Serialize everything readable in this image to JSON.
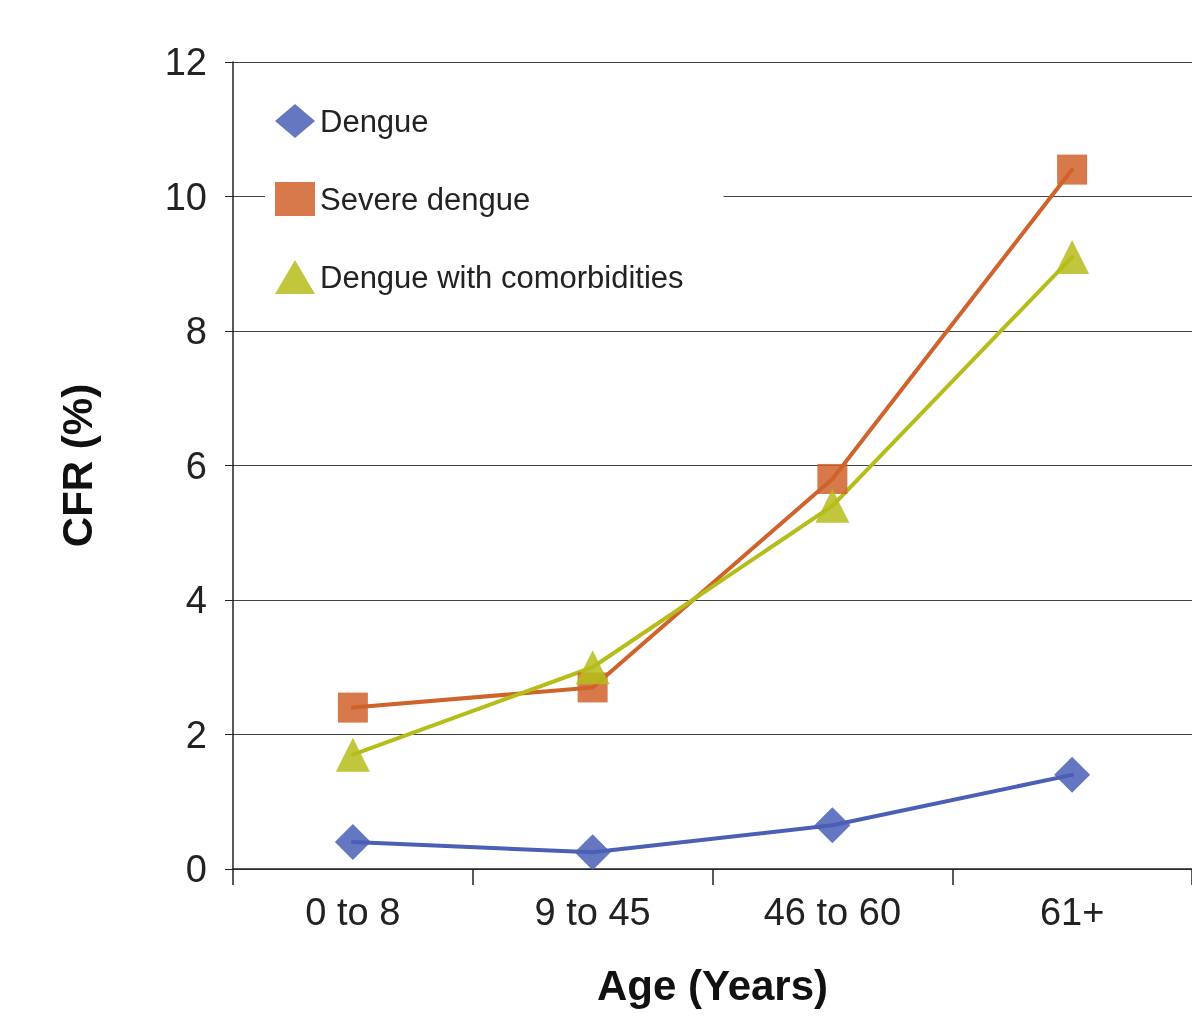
{
  "chart_data": {
    "type": "line",
    "xlabel": "Age (Years)",
    "ylabel": "CFR (%)",
    "categories": [
      "0 to 8",
      "9 to 45",
      "46 to 60",
      "61+"
    ],
    "series": [
      {
        "name": "Dengue",
        "color": "#4a5fb5",
        "marker": "diamond",
        "values": [
          0.4,
          0.25,
          0.65,
          1.4
        ]
      },
      {
        "name": "Severe dengue",
        "color": "#d0622c",
        "marker": "square",
        "values": [
          2.4,
          2.7,
          5.8,
          10.4
        ]
      },
      {
        "name": "Dengue with comorbidities",
        "color": "#b5bd1b",
        "marker": "triangle",
        "values": [
          1.7,
          3.0,
          5.4,
          9.1
        ]
      }
    ],
    "ylim": [
      0,
      12
    ],
    "yticks": [
      0,
      2,
      4,
      6,
      8,
      10,
      12
    ],
    "grid": "y",
    "legend": "top left",
    "line_style": "solid"
  }
}
